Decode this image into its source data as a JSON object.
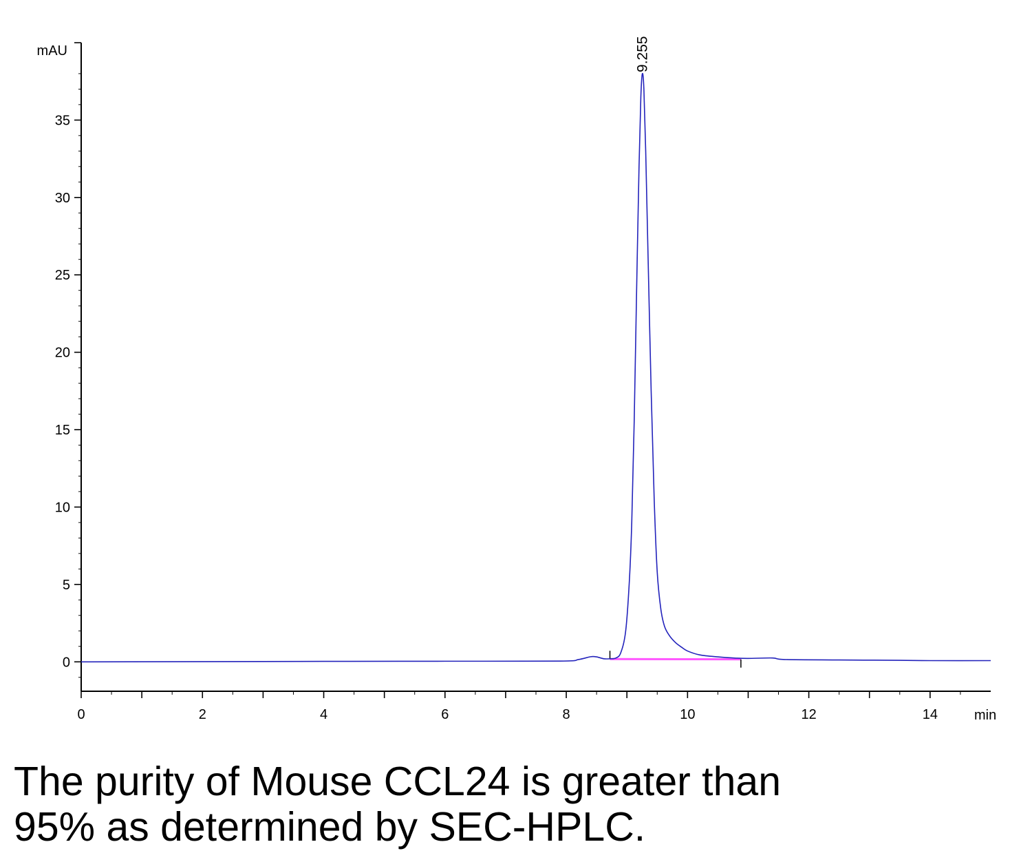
{
  "chart_data": {
    "type": "line",
    "title": "",
    "xlabel": "",
    "ylabel": "",
    "x_unit": "min",
    "y_unit": "mAU",
    "xlim": [
      0,
      15
    ],
    "ylim": [
      -1.9,
      40
    ],
    "x_ticks": [
      0,
      2,
      4,
      6,
      8,
      10,
      12,
      14
    ],
    "y_ticks": [
      0,
      5,
      10,
      15,
      20,
      25,
      30,
      35
    ],
    "grid": false,
    "colors": {
      "trace": "#2222bb",
      "baseline": "#ff55ff"
    },
    "peak": {
      "label": "9.255",
      "x": 9.255,
      "y": 38.0
    },
    "series": [
      {
        "x": [
          0,
          3,
          4,
          6,
          7.9,
          8.2,
          8.4,
          8.5,
          8.62,
          8.72,
          8.82,
          8.9,
          8.98,
          9.04,
          9.08,
          9.12,
          9.16,
          9.2,
          9.23,
          9.255,
          9.28,
          9.31,
          9.35,
          9.4,
          9.45,
          9.5,
          9.56,
          9.62,
          9.7,
          9.8,
          9.9,
          10.0,
          10.2,
          10.5,
          10.8,
          11.0,
          11.4,
          11.6,
          12.5,
          13.5,
          14.0,
          15.0
        ],
        "y": [
          0.0,
          0.02,
          0.03,
          0.04,
          0.05,
          0.15,
          0.33,
          0.32,
          0.2,
          0.2,
          0.25,
          0.6,
          2.0,
          5.2,
          9.0,
          15.5,
          24.0,
          32.0,
          36.5,
          38.0,
          37.0,
          33.0,
          26.0,
          17.5,
          10.5,
          5.8,
          3.4,
          2.3,
          1.7,
          1.25,
          0.95,
          0.7,
          0.45,
          0.32,
          0.24,
          0.22,
          0.25,
          0.15,
          0.12,
          0.1,
          0.08,
          0.08
        ]
      }
    ],
    "integration_baseline": {
      "x": [
        8.72,
        10.88
      ],
      "y": [
        0.18,
        0.16
      ]
    }
  },
  "caption": {
    "line1": "The purity of Mouse CCL24 is greater than",
    "line2": "95% as determined by SEC-HPLC."
  }
}
